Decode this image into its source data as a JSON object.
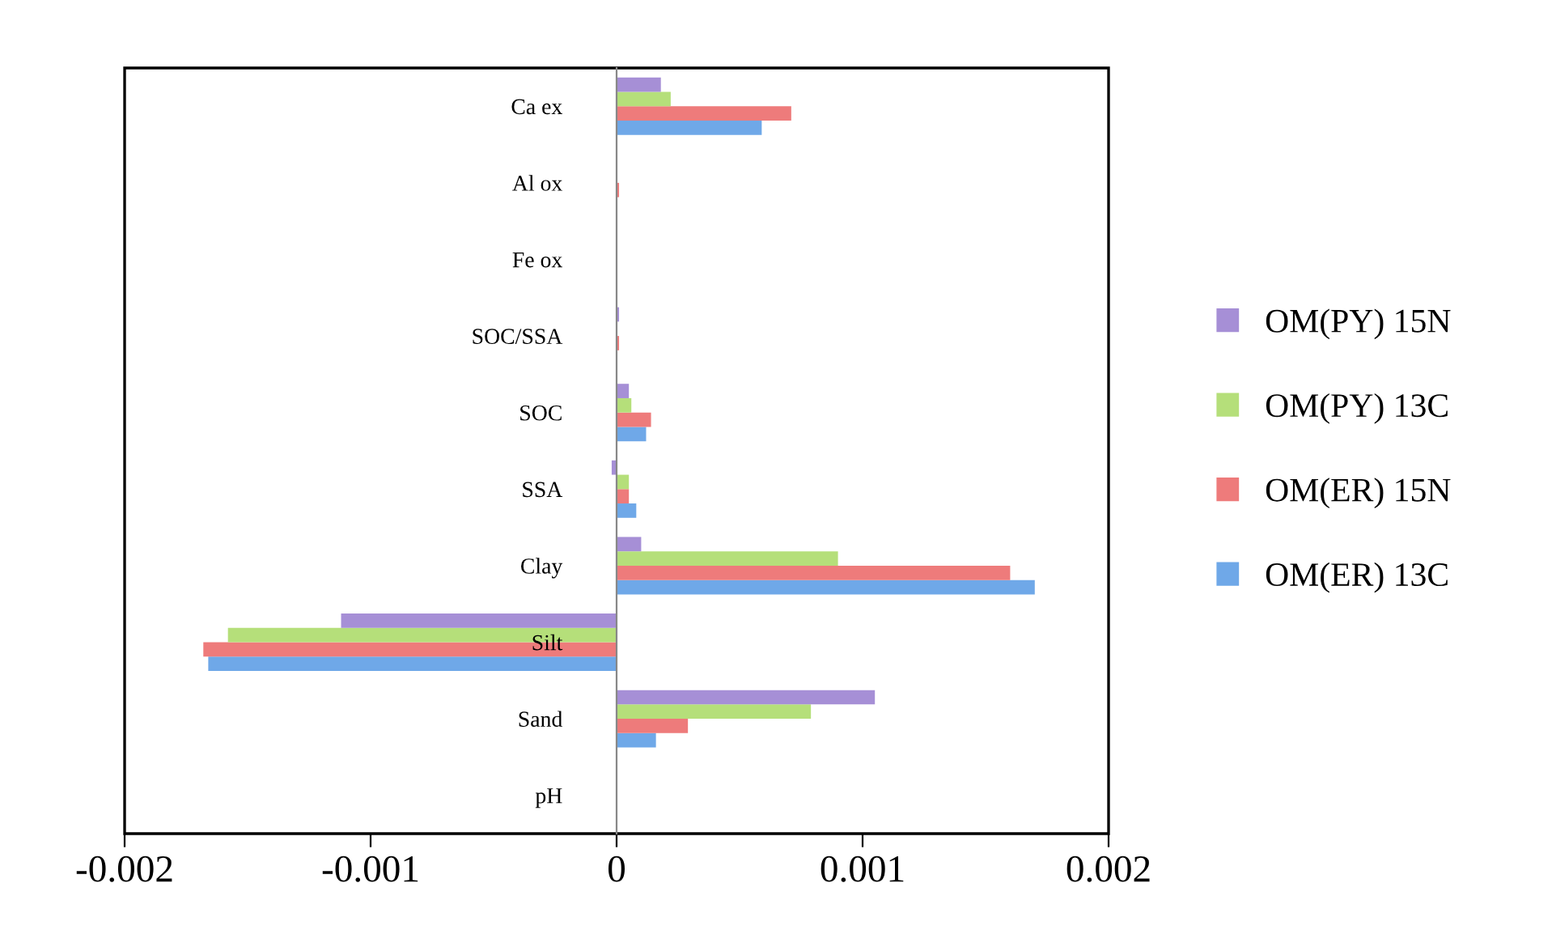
{
  "chart_data": {
    "type": "bar",
    "orientation": "horizontal",
    "categories": [
      "Ca ex",
      "Al ox",
      "Fe ox",
      "SOC/SSA",
      "SOC",
      "SSA",
      "Clay",
      "Silt",
      "Sand",
      "pH"
    ],
    "series": [
      {
        "name": "OM(ER) 13C",
        "color": "#6fa8e8",
        "values": [
          0.00059,
          0,
          0,
          0,
          0.00012,
          8e-05,
          0.0017,
          -0.00166,
          0.00016,
          0
        ]
      },
      {
        "name": "OM(ER) 15N",
        "color": "#ee7b7b",
        "values": [
          0.00071,
          1e-05,
          0,
          1e-05,
          0.00014,
          5e-05,
          0.0016,
          -0.00168,
          0.00029,
          0
        ]
      },
      {
        "name": "OM(PY) 13C",
        "color": "#b5df7a",
        "values": [
          0.00022,
          0,
          0,
          0,
          6e-05,
          5e-05,
          0.0009,
          -0.00158,
          0.00079,
          0
        ]
      },
      {
        "name": "OM(PY) 15N",
        "color": "#a68fd6",
        "values": [
          0.00018,
          0,
          0,
          1e-05,
          5e-05,
          -2e-05,
          0.0001,
          -0.00112,
          0.00105,
          0
        ]
      }
    ],
    "xlim": [
      -0.002,
      0.002
    ],
    "xticks": [
      -0.002,
      -0.001,
      0,
      0.001,
      0.002
    ],
    "grid": false,
    "legend": "right"
  }
}
